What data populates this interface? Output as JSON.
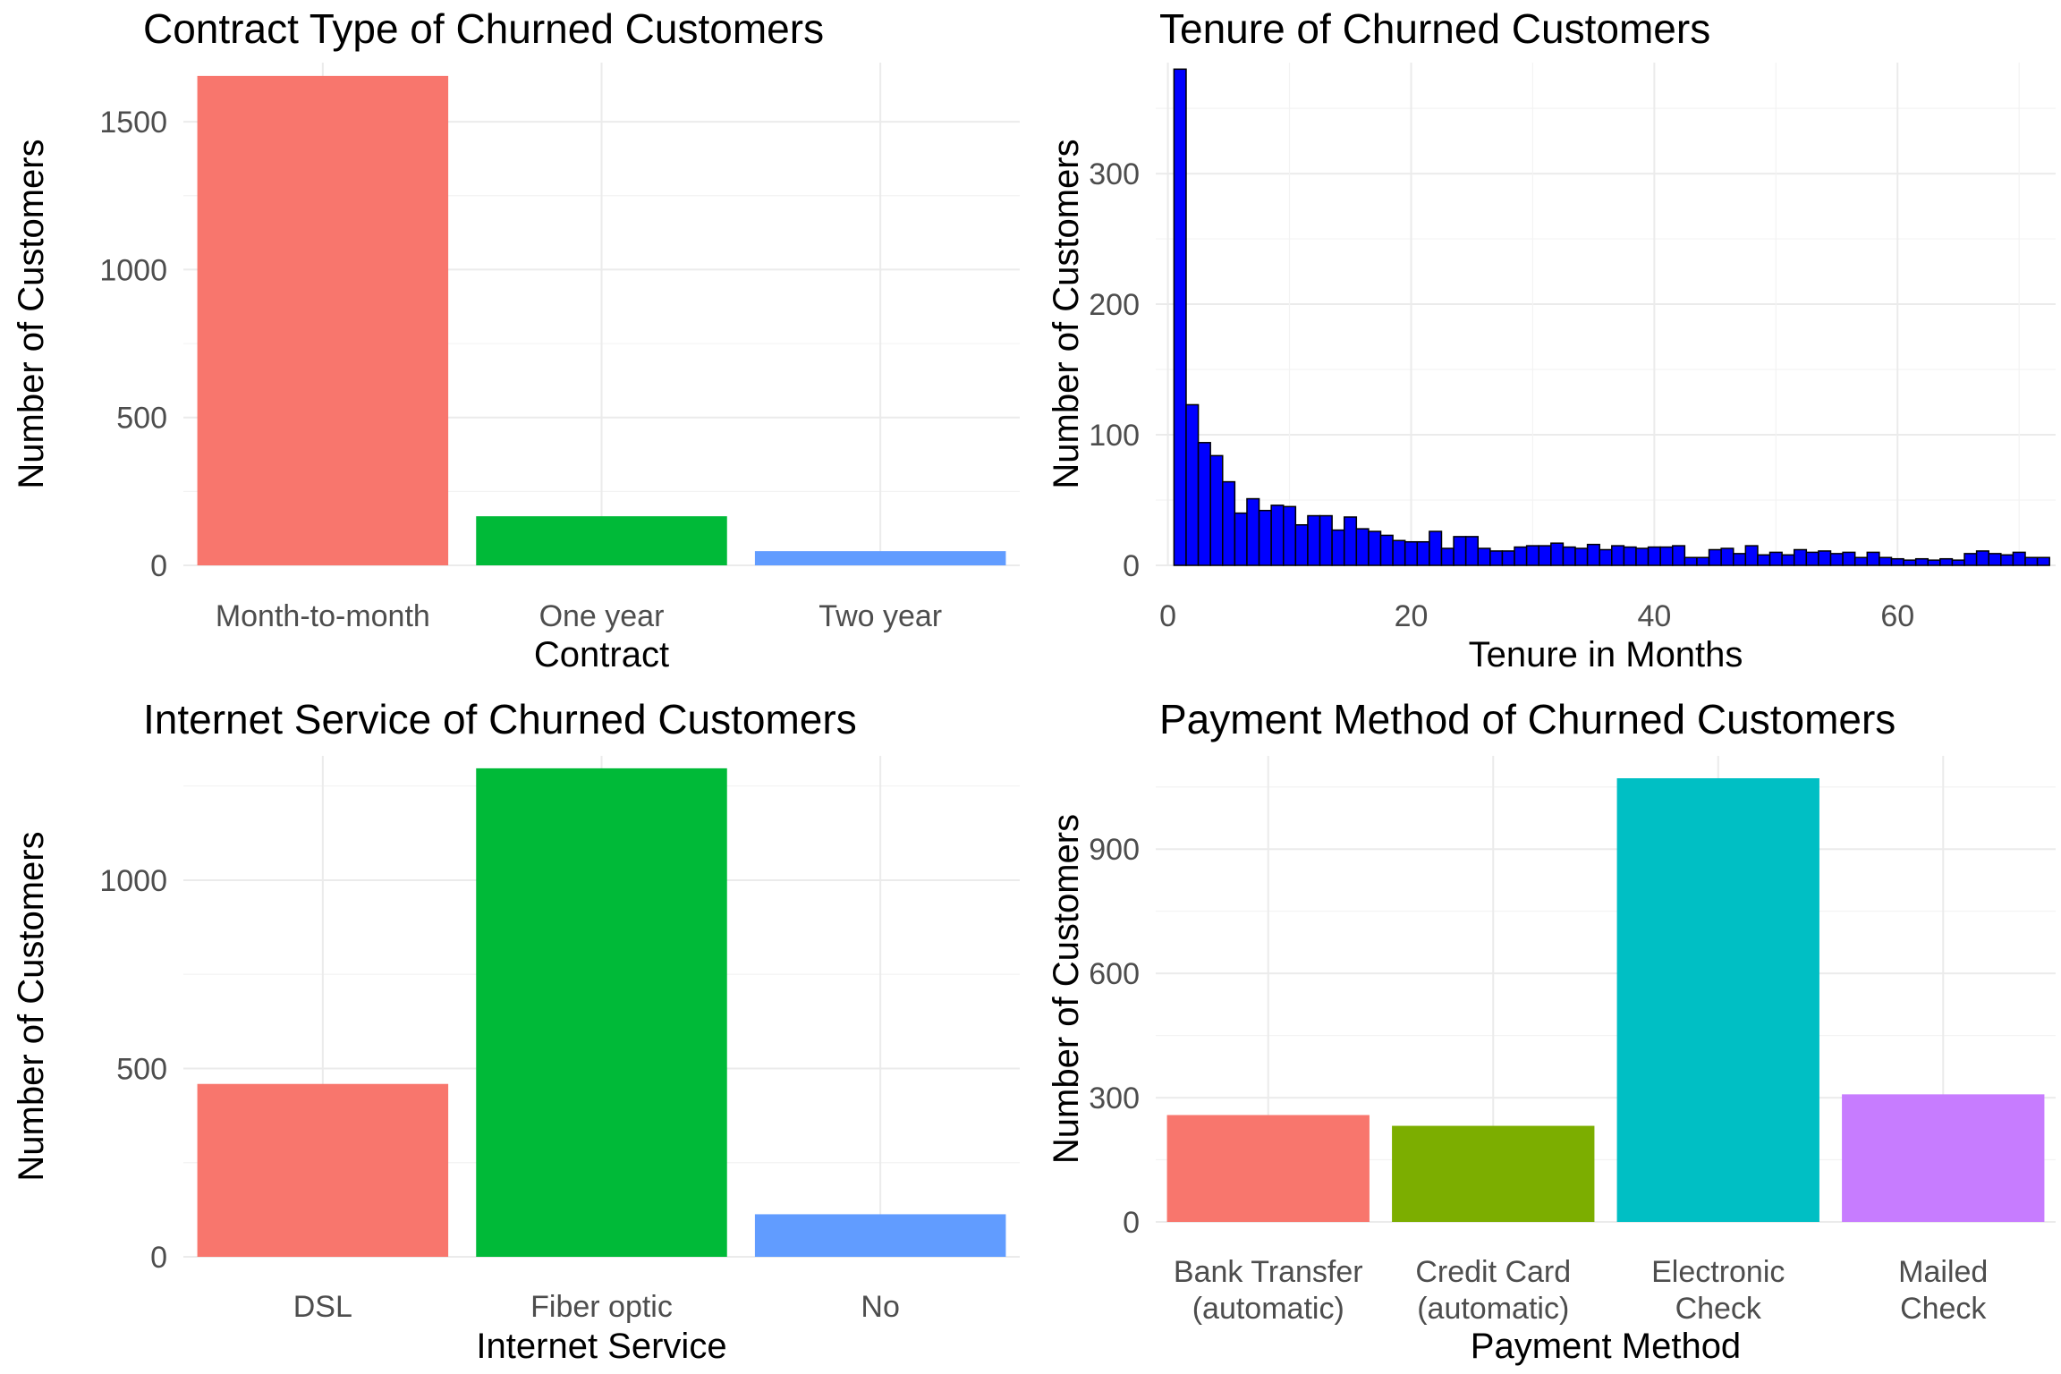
{
  "chart_data": [
    {
      "type": "bar",
      "title": "Contract Type of Churned Customers",
      "xlabel": "Contract",
      "ylabel": "Number of Customers",
      "categories": [
        "Month-to-month",
        "One year",
        "Two year"
      ],
      "values": [
        1655,
        166,
        48
      ],
      "colors": [
        "#F8766D",
        "#00BA38",
        "#619CFF"
      ],
      "ylim": [
        0,
        1700
      ],
      "yticks": [
        0,
        500,
        1000,
        1500
      ],
      "grid": true,
      "legend": "none"
    },
    {
      "type": "bar",
      "title": "Tenure of Churned Customers",
      "xlabel": "Tenure in Months",
      "ylabel": "Number of Customers",
      "x": [
        1,
        2,
        3,
        4,
        5,
        6,
        7,
        8,
        9,
        10,
        11,
        12,
        13,
        14,
        15,
        16,
        17,
        18,
        19,
        20,
        21,
        22,
        23,
        24,
        25,
        26,
        27,
        28,
        29,
        30,
        31,
        32,
        33,
        34,
        35,
        36,
        37,
        38,
        39,
        40,
        41,
        42,
        43,
        44,
        45,
        46,
        47,
        48,
        49,
        50,
        51,
        52,
        53,
        54,
        55,
        56,
        57,
        58,
        59,
        60,
        61,
        62,
        63,
        64,
        65,
        66,
        67,
        68,
        69,
        70,
        71,
        72
      ],
      "values": [
        380,
        123,
        94,
        84,
        64,
        40,
        51,
        42,
        46,
        45,
        31,
        38,
        38,
        27,
        37,
        28,
        26,
        23,
        19,
        18,
        18,
        26,
        13,
        22,
        22,
        13,
        11,
        11,
        14,
        15,
        15,
        17,
        14,
        13,
        16,
        12,
        15,
        14,
        13,
        14,
        14,
        15,
        6,
        6,
        12,
        13,
        9,
        15,
        8,
        10,
        8,
        12,
        10,
        11,
        9,
        10,
        6,
        10,
        6,
        5,
        4,
        5,
        4,
        5,
        4,
        9,
        11,
        9,
        8,
        10,
        6,
        6
      ],
      "fill": "#0000FF",
      "outline": "#000000",
      "xlim": [
        -1,
        73
      ],
      "ylim": [
        0,
        385
      ],
      "xticks": [
        0,
        20,
        40,
        60
      ],
      "yticks": [
        0,
        100,
        200,
        300
      ],
      "grid": true,
      "legend": "none"
    },
    {
      "type": "bar",
      "title": "Internet Service of Churned Customers",
      "xlabel": "Internet Service",
      "ylabel": "Number of Customers",
      "categories": [
        "DSL",
        "Fiber optic",
        "No"
      ],
      "values": [
        459,
        1297,
        113
      ],
      "colors": [
        "#F8766D",
        "#00BA38",
        "#619CFF"
      ],
      "ylim": [
        0,
        1330
      ],
      "yticks": [
        0,
        500,
        1000
      ],
      "grid": true,
      "legend": "none"
    },
    {
      "type": "bar",
      "title": "Payment Method of Churned Customers",
      "xlabel": "Payment Method",
      "ylabel": "Number of Customers",
      "categories": [
        "Bank Transfer\n(automatic)",
        "Credit Card\n(automatic)",
        "Electronic\nCheck",
        "Mailed\nCheck"
      ],
      "values": [
        258,
        232,
        1071,
        308
      ],
      "colors": [
        "#F8766D",
        "#7CAE00",
        "#00BFC4",
        "#C77CFF"
      ],
      "ylim": [
        0,
        1125
      ],
      "yticks": [
        0,
        300,
        600,
        900
      ],
      "grid": true,
      "legend": "none"
    }
  ]
}
